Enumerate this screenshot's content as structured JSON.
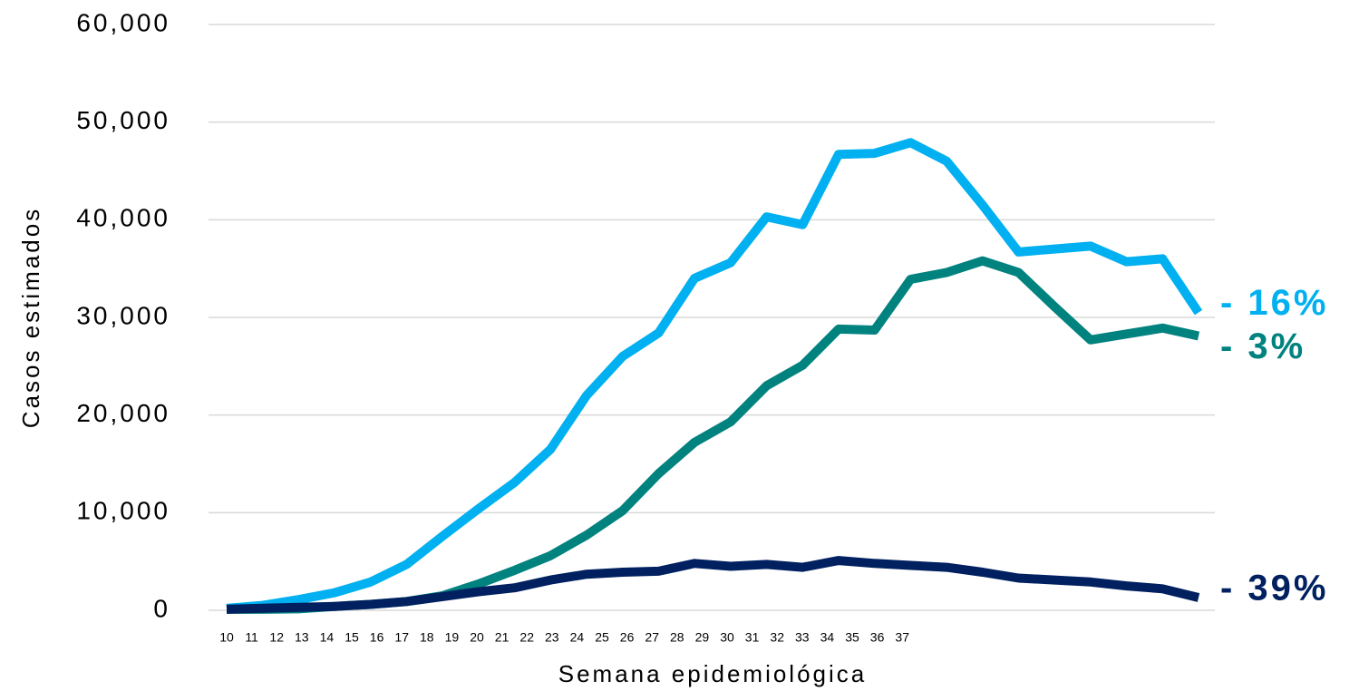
{
  "chart_data": {
    "type": "line",
    "x_label": "Semana epidemiológica",
    "y_label": "Casos estimados",
    "categories": [
      "10",
      "11",
      "12",
      "13",
      "14",
      "15",
      "16",
      "17",
      "18",
      "19",
      "20",
      "21",
      "22",
      "23",
      "24",
      "25",
      "26",
      "27",
      "28",
      "29",
      "30",
      "31",
      "32",
      "33",
      "34",
      "35",
      "36",
      "37"
    ],
    "series": [
      {
        "color": "#00b0f0",
        "label": "- 16%",
        "values": [
          200,
          500,
          1100,
          1800,
          2900,
          4700,
          7600,
          10400,
          13100,
          16500,
          22000,
          26000,
          28400,
          34000,
          35600,
          40300,
          39500,
          46700,
          46800,
          47900,
          46000,
          41500,
          36700,
          37000,
          37300,
          35700,
          36000,
          30500
        ]
      },
      {
        "color": "#00827f",
        "label": "- 3%",
        "values": [
          100,
          100,
          150,
          400,
          600,
          900,
          1500,
          2700,
          4100,
          5600,
          7700,
          10200,
          14000,
          17200,
          19300,
          23000,
          25100,
          28800,
          28700,
          33900,
          34600,
          35800,
          34600,
          31100,
          27700,
          28300,
          28900,
          28100
        ]
      },
      {
        "color": "#002060",
        "label": "- 39%",
        "values": [
          100,
          200,
          300,
          400,
          600,
          900,
          1400,
          1900,
          2300,
          3100,
          3700,
          3900,
          4000,
          4800,
          4500,
          4700,
          4400,
          5100,
          4800,
          4600,
          4400,
          3900,
          3300,
          3100,
          2900,
          2500,
          2200,
          1300
        ]
      }
    ],
    "ylim": [
      0,
      60000
    ],
    "yticks": [
      0,
      {
        "value": 10000,
        "label": "10,000"
      },
      {
        "value": 20000,
        "label": "20,000"
      },
      {
        "value": 30000,
        "label": "30,000"
      },
      {
        "value": 40000,
        "label": "40,000"
      },
      {
        "value": 50000,
        "label": "50,000"
      },
      {
        "value": 60000,
        "label": "60,000"
      }
    ],
    "grid": true
  }
}
